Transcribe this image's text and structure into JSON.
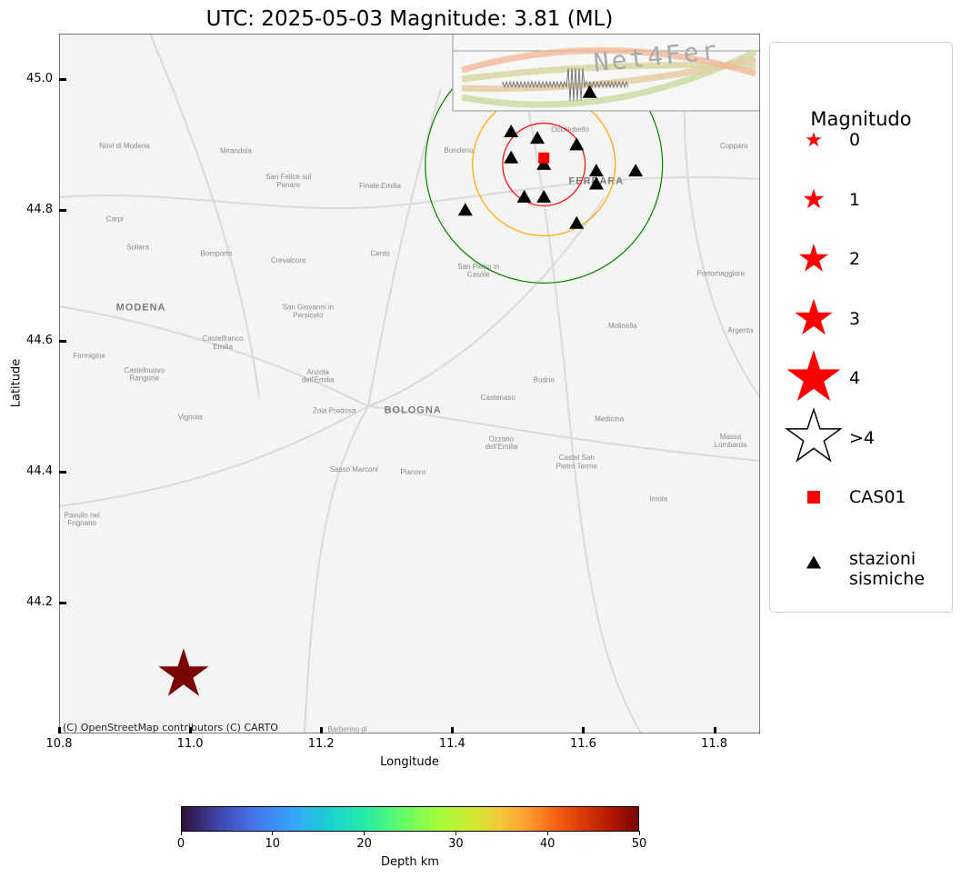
{
  "title": "UTC: 2025-05-03 Magnitude: 3.81 (ML)",
  "map": {
    "xlabel": "Longitude",
    "ylabel": "Latitude",
    "xlim": [
      10.8,
      11.87
    ],
    "ylim": [
      44.0,
      45.07
    ],
    "xticks": [
      "10.8",
      "11.0",
      "11.2",
      "11.4",
      "11.6",
      "11.8"
    ],
    "yticks": [
      "45.0",
      "44.8",
      "44.6",
      "44.4",
      "44.2"
    ],
    "attribution": "(C) OpenStreetMap contributors (C) CARTO",
    "place_labels": [
      {
        "name": "Novi di Modena",
        "lon": 10.9,
        "lat": 44.895
      },
      {
        "name": "Mirandola",
        "lon": 11.07,
        "lat": 44.887
      },
      {
        "name": "San Felice sul",
        "lon": 11.15,
        "lat": 44.848
      },
      {
        "name": "Panaro",
        "lon": 11.15,
        "lat": 44.835
      },
      {
        "name": "Finale Emilia",
        "lon": 11.29,
        "lat": 44.834
      },
      {
        "name": "Bondeno",
        "lon": 11.41,
        "lat": 44.888
      },
      {
        "name": "Occhiobello",
        "lon": 11.58,
        "lat": 44.92
      },
      {
        "name": "FERRARA",
        "lon": 11.62,
        "lat": 44.84
      },
      {
        "name": "Copparo",
        "lon": 11.83,
        "lat": 44.895
      },
      {
        "name": "Carpi",
        "lon": 10.885,
        "lat": 44.783
      },
      {
        "name": "Soliera",
        "lon": 10.92,
        "lat": 44.74
      },
      {
        "name": "Bomporto",
        "lon": 11.04,
        "lat": 44.73
      },
      {
        "name": "Crevalcore",
        "lon": 11.15,
        "lat": 44.72
      },
      {
        "name": "Cento",
        "lon": 11.29,
        "lat": 44.73
      },
      {
        "name": "San Pietro in",
        "lon": 11.44,
        "lat": 44.71
      },
      {
        "name": "Casale",
        "lon": 11.44,
        "lat": 44.698
      },
      {
        "name": "Portomaggiore",
        "lon": 11.81,
        "lat": 44.7
      },
      {
        "name": "MODENA",
        "lon": 10.925,
        "lat": 44.647
      },
      {
        "name": "San Giovanni in",
        "lon": 11.18,
        "lat": 44.648
      },
      {
        "name": "Persiceto",
        "lon": 11.18,
        "lat": 44.636
      },
      {
        "name": "Molinella",
        "lon": 11.66,
        "lat": 44.62
      },
      {
        "name": "Argenta",
        "lon": 11.84,
        "lat": 44.613
      },
      {
        "name": "Castelfranco",
        "lon": 11.05,
        "lat": 44.6
      },
      {
        "name": "Emilia",
        "lon": 11.05,
        "lat": 44.588
      },
      {
        "name": "Formigine",
        "lon": 10.846,
        "lat": 44.574
      },
      {
        "name": "Castelnuovo",
        "lon": 10.93,
        "lat": 44.552
      },
      {
        "name": "Rangone",
        "lon": 10.93,
        "lat": 44.54
      },
      {
        "name": "Anzola",
        "lon": 11.195,
        "lat": 44.549
      },
      {
        "name": "dell'Emilia",
        "lon": 11.195,
        "lat": 44.537
      },
      {
        "name": "Budrio",
        "lon": 11.54,
        "lat": 44.537
      },
      {
        "name": "Castenaso",
        "lon": 11.47,
        "lat": 44.51
      },
      {
        "name": "Zola Predosa",
        "lon": 11.22,
        "lat": 44.49
      },
      {
        "name": "BOLOGNA",
        "lon": 11.34,
        "lat": 44.49
      },
      {
        "name": "Vignola",
        "lon": 11.0,
        "lat": 44.48
      },
      {
        "name": "Medicina",
        "lon": 11.64,
        "lat": 44.477
      },
      {
        "name": "Ozzano",
        "lon": 11.475,
        "lat": 44.447
      },
      {
        "name": "dell'Emilia",
        "lon": 11.475,
        "lat": 44.435
      },
      {
        "name": "Massa",
        "lon": 11.825,
        "lat": 44.45
      },
      {
        "name": "Lombarda",
        "lon": 11.825,
        "lat": 44.438
      },
      {
        "name": "Castel San",
        "lon": 11.59,
        "lat": 44.418
      },
      {
        "name": "Pietro Terme",
        "lon": 11.59,
        "lat": 44.405
      },
      {
        "name": "Sasso Marconi",
        "lon": 11.25,
        "lat": 44.4
      },
      {
        "name": "Pianoro",
        "lon": 11.34,
        "lat": 44.396
      },
      {
        "name": "Imola",
        "lon": 11.715,
        "lat": 44.355
      },
      {
        "name": "Pavullo nel",
        "lon": 10.835,
        "lat": 44.33
      },
      {
        "name": "Frignano",
        "lon": 10.835,
        "lat": 44.318
      },
      {
        "name": "Barberino di",
        "lon": 11.24,
        "lat": 44.003
      }
    ],
    "epicenter": {
      "lon": 10.99,
      "lat": 44.09,
      "magnitude": 3.81,
      "depth_km": 50,
      "color": "#7a0403"
    },
    "station_home": {
      "name": "CAS01",
      "lon": 11.54,
      "lat": 44.88,
      "color": "#ff0000"
    },
    "stations": [
      {
        "lon": 11.49,
        "lat": 44.92
      },
      {
        "lon": 11.53,
        "lat": 44.91
      },
      {
        "lon": 11.59,
        "lat": 44.9
      },
      {
        "lon": 11.49,
        "lat": 44.88
      },
      {
        "lon": 11.54,
        "lat": 44.87
      },
      {
        "lon": 11.62,
        "lat": 44.86
      },
      {
        "lon": 11.68,
        "lat": 44.86
      },
      {
        "lon": 11.62,
        "lat": 44.84
      },
      {
        "lon": 11.51,
        "lat": 44.82
      },
      {
        "lon": 11.54,
        "lat": 44.82
      },
      {
        "lon": 11.42,
        "lat": 44.8
      },
      {
        "lon": 11.59,
        "lat": 44.78
      },
      {
        "lon": 11.61,
        "lat": 44.98
      }
    ],
    "rings": [
      {
        "lon": 11.54,
        "lat": 44.87,
        "radius_deg": 0.063,
        "color": "#ff0000"
      },
      {
        "lon": 11.54,
        "lat": 44.87,
        "radius_deg": 0.109,
        "color": "#ffa500"
      },
      {
        "lon": 11.54,
        "lat": 44.87,
        "radius_deg": 0.181,
        "color": "#008000"
      }
    ],
    "logo_text": "Net4Fer"
  },
  "legend": {
    "title": "Magnitudo",
    "entries": [
      {
        "label": "0",
        "symbol": "star",
        "size": 1
      },
      {
        "label": "1",
        "symbol": "star",
        "size": 2
      },
      {
        "label": "2",
        "symbol": "star",
        "size": 3
      },
      {
        "label": "3",
        "symbol": "star",
        "size": 4
      },
      {
        "label": "4",
        "symbol": "star",
        "size": 5
      },
      {
        "label": ">4",
        "symbol": "star-outline",
        "size": 5
      },
      {
        "label": "CAS01",
        "symbol": "square",
        "size": 1
      },
      {
        "label": "stazioni\nsismiche",
        "symbol": "triangle",
        "size": 1
      }
    ],
    "marker_color": "#ff0000"
  },
  "colorbar": {
    "label": "Depth km",
    "ticks": [
      "0",
      "10",
      "20",
      "30",
      "40",
      "50"
    ],
    "range": [
      0,
      50
    ],
    "colormap": "turbo"
  }
}
